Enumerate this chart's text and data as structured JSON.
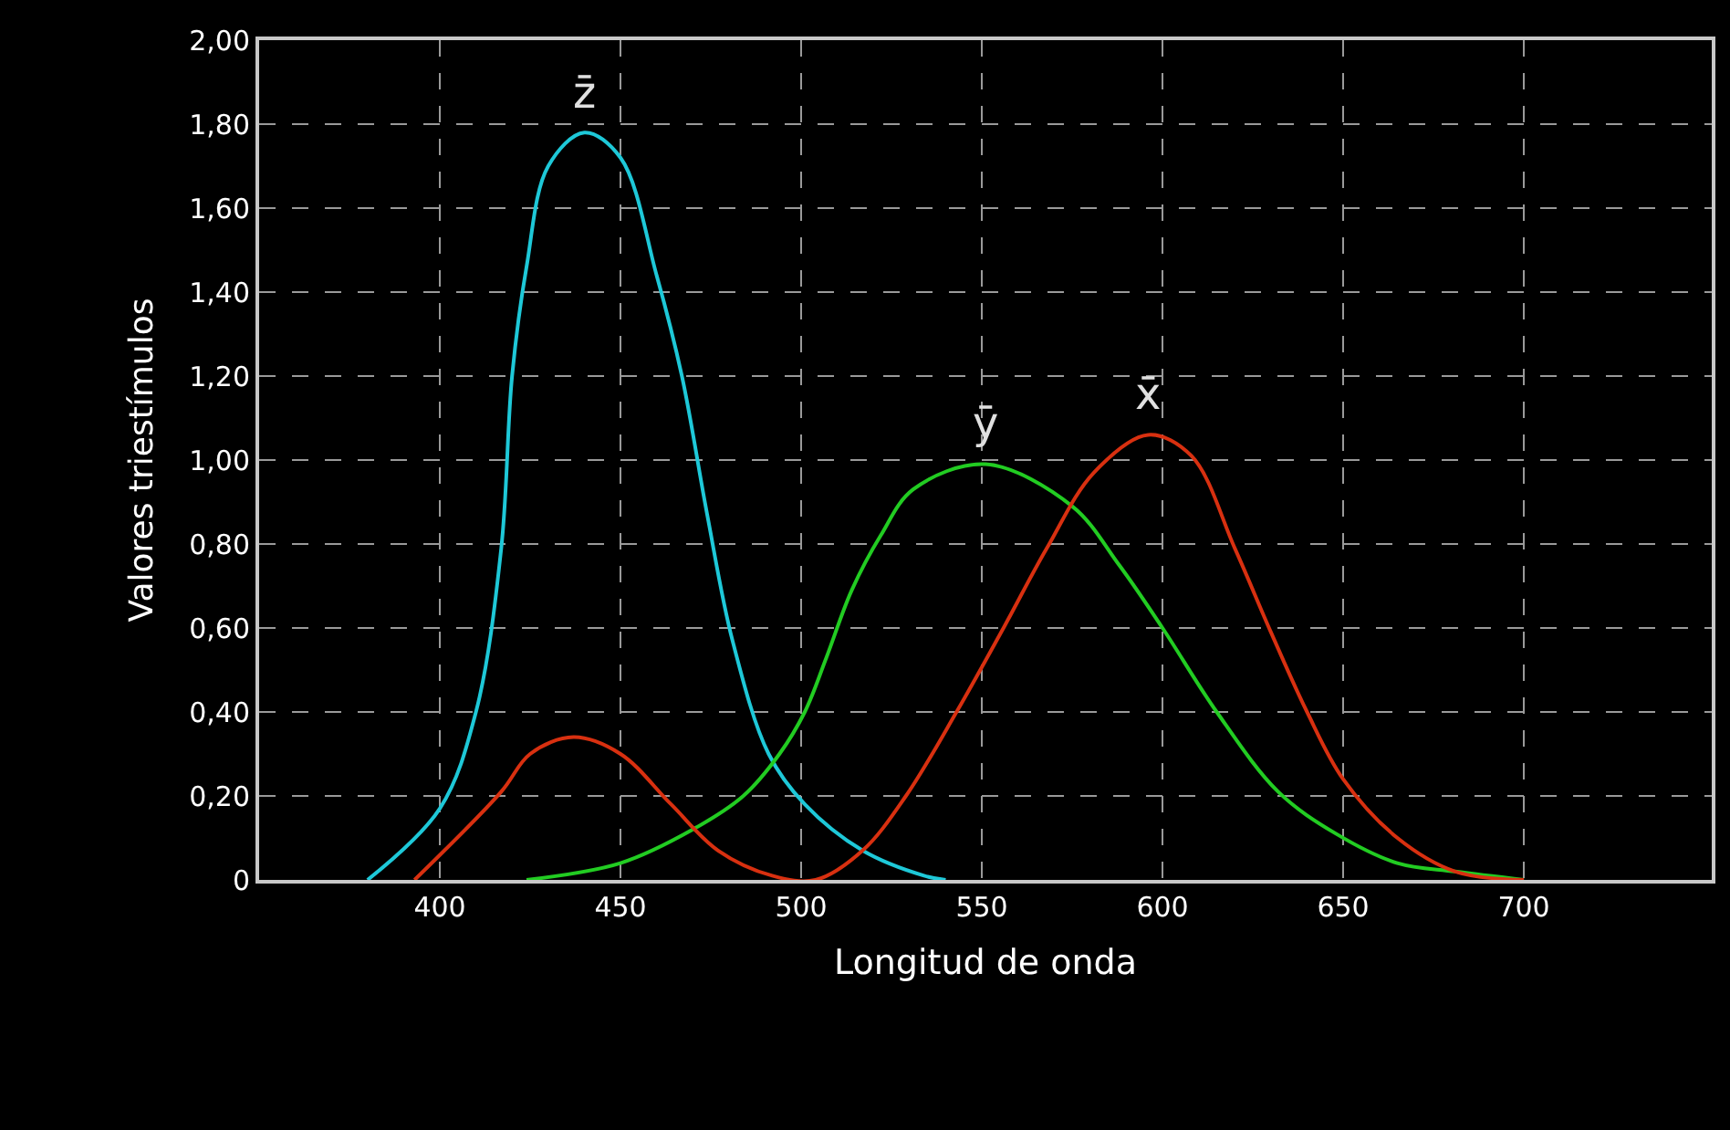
{
  "chart_data": {
    "type": "line",
    "xlabel": "Longitud de onda",
    "ylabel": "Valores triestímulos",
    "series": [
      {
        "name": "z̄",
        "color": "#1ec8d8",
        "x": [
          380,
          400,
          410,
          417,
          420,
          424,
          430,
          440,
          450,
          460,
          467,
          474,
          481,
          491,
          501,
          517,
          534,
          540
        ],
        "values": [
          0,
          0.17,
          0.4,
          0.79,
          1.2,
          1.46,
          1.7,
          1.78,
          1.72,
          1.44,
          1.2,
          0.87,
          0.57,
          0.3,
          0.18,
          0.07,
          0.01,
          0
        ]
      },
      {
        "name": "ȳ",
        "color": "#22cc22",
        "x": [
          424,
          450,
          470,
          484,
          494,
          501,
          507,
          514,
          522,
          531,
          551,
          575,
          588,
          600,
          615,
          632,
          648,
          665,
          681,
          700
        ],
        "values": [
          0,
          0.04,
          0.12,
          0.2,
          0.3,
          0.4,
          0.53,
          0.69,
          0.82,
          0.93,
          0.99,
          0.89,
          0.75,
          0.6,
          0.4,
          0.21,
          0.11,
          0.04,
          0.02,
          0
        ]
      },
      {
        "name": "x̄",
        "color": "#d83010",
        "x": [
          393,
          417,
          425,
          437,
          450,
          464,
          477,
          492,
          504,
          517,
          529,
          543,
          556,
          568,
          581,
          596,
          608,
          620,
          630,
          640,
          650,
          665,
          681,
          700
        ],
        "values": [
          0,
          0.21,
          0.3,
          0.34,
          0.3,
          0.18,
          0.07,
          0.01,
          0,
          0.07,
          0.2,
          0.4,
          0.6,
          0.79,
          0.97,
          1.06,
          1.01,
          0.79,
          0.59,
          0.4,
          0.24,
          0.1,
          0.02,
          0
        ]
      }
    ],
    "xlim": [
      350,
      752
    ],
    "xticks": [
      400,
      450,
      500,
      550,
      600,
      650,
      700
    ],
    "ylim": [
      0,
      2
    ],
    "yticks": [
      {
        "value": 0,
        "label": "0"
      },
      {
        "value": 0.2,
        "label": "0,20"
      },
      {
        "value": 0.4,
        "label": "0,40"
      },
      {
        "value": 0.6,
        "label": "0,60"
      },
      {
        "value": 0.8,
        "label": "0,80"
      },
      {
        "value": 1.0,
        "label": "1,00"
      },
      {
        "value": 1.2,
        "label": "1,20"
      },
      {
        "value": 1.4,
        "label": "1,40"
      },
      {
        "value": 1.6,
        "label": "1,60"
      },
      {
        "value": 1.8,
        "label": "1,80"
      },
      {
        "value": 2.0,
        "label": "2,00"
      }
    ],
    "grid": true,
    "legend": false,
    "line_style": "solid",
    "marker": "none"
  }
}
